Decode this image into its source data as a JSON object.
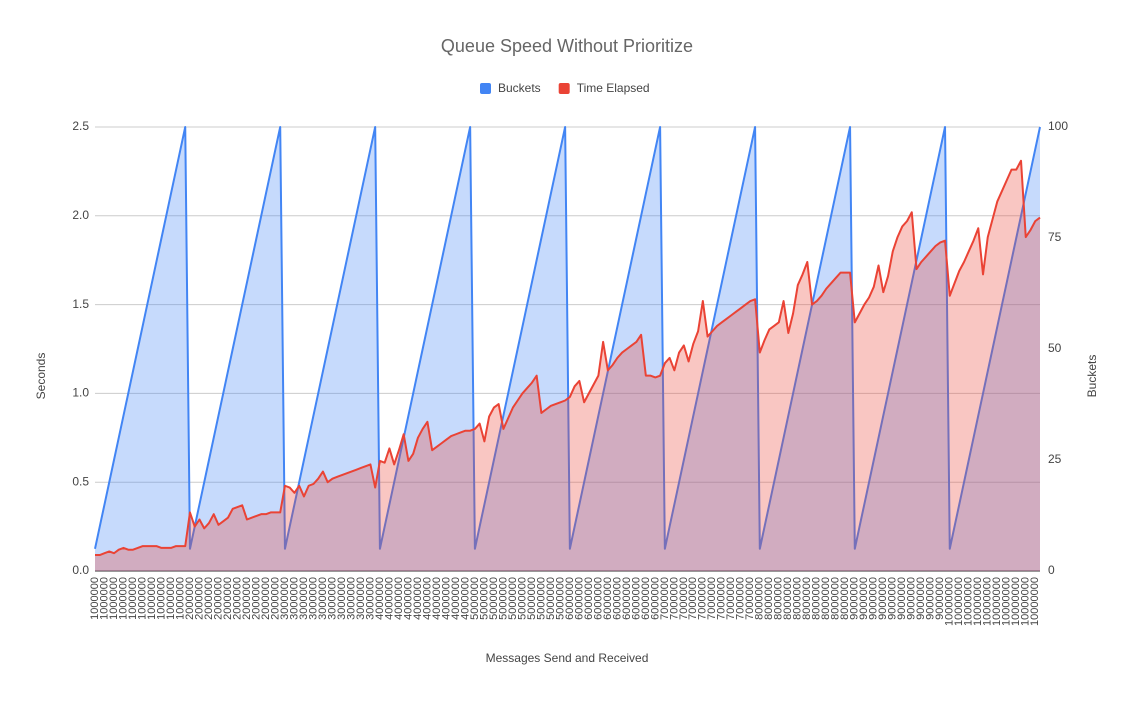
{
  "chart_data": {
    "type": "line",
    "title": "Queue Speed Without Prioritize",
    "x_label": "Messages Send and Received",
    "y_label": "Seconds",
    "y2_label": "Buckets",
    "categories": [
      "1000000",
      null,
      "1000000",
      null,
      "1000000",
      null,
      "1000000",
      null,
      "1000000",
      null,
      "1000000",
      null,
      "1000000",
      null,
      "1000000",
      null,
      "1000000",
      null,
      "1000000",
      null,
      "2000000",
      null,
      "2000000",
      null,
      "2000000",
      null,
      "2000000",
      null,
      "2000000",
      null,
      "2000000",
      null,
      "2000000",
      null,
      "2000000",
      null,
      "2000000",
      null,
      "2000000",
      null,
      "3000000",
      null,
      "3000000",
      null,
      "3000000",
      null,
      "3000000",
      null,
      "3000000",
      null,
      "3000000",
      null,
      "3000000",
      null,
      "3000000",
      null,
      "3000000",
      null,
      "3000000",
      null,
      "4000000",
      null,
      "4000000",
      null,
      "4000000",
      null,
      "4000000",
      null,
      "4000000",
      null,
      "4000000",
      null,
      "4000000",
      null,
      "4000000",
      null,
      "4000000",
      null,
      "4000000",
      null,
      "5000000",
      null,
      "5000000",
      null,
      "5000000",
      null,
      "5000000",
      null,
      "5000000",
      null,
      "5000000",
      null,
      "5000000",
      null,
      "5000000",
      null,
      "5000000",
      null,
      "5000000",
      null,
      "6000000",
      null,
      "6000000",
      null,
      "6000000",
      null,
      "6000000",
      null,
      "6000000",
      null,
      "6000000",
      null,
      "6000000",
      null,
      "6000000",
      null,
      "6000000",
      null,
      "6000000",
      null,
      "7000000",
      null,
      "7000000",
      null,
      "7000000",
      null,
      "7000000",
      null,
      "7000000",
      null,
      "7000000",
      null,
      "7000000",
      null,
      "7000000",
      null,
      "7000000",
      null,
      "7000000",
      null,
      "8000000",
      null,
      "8000000",
      null,
      "8000000",
      null,
      "8000000",
      null,
      "8000000",
      null,
      "8000000",
      null,
      "8000000",
      null,
      "8000000",
      null,
      "8000000",
      null,
      "8000000",
      null,
      "9000000",
      null,
      "9000000",
      null,
      "9000000",
      null,
      "9000000",
      null,
      "9000000",
      null,
      "9000000",
      null,
      "9000000",
      null,
      "9000000",
      null,
      "9000000",
      null,
      "9000000",
      null,
      "10000000",
      null,
      "10000000",
      null,
      "10000000",
      null,
      "10000000",
      null,
      "10000000",
      null,
      "10000000",
      null,
      "10000000",
      null,
      "10000000",
      null,
      "10000000",
      null,
      "10000000",
      null
    ],
    "series": [
      {
        "name": "Buckets",
        "color": "#4285f4",
        "axis": "y2",
        "values": [
          5,
          10,
          15,
          20,
          25,
          30,
          35,
          40,
          45,
          50,
          55,
          60,
          65,
          70,
          75,
          80,
          85,
          90,
          95,
          100,
          5,
          10,
          15,
          20,
          25,
          30,
          35,
          40,
          45,
          50,
          55,
          60,
          65,
          70,
          75,
          80,
          85,
          90,
          95,
          100,
          5,
          10,
          15,
          20,
          25,
          30,
          35,
          40,
          45,
          50,
          55,
          60,
          65,
          70,
          75,
          80,
          85,
          90,
          95,
          100,
          5,
          10,
          15,
          20,
          25,
          30,
          35,
          40,
          45,
          50,
          55,
          60,
          65,
          70,
          75,
          80,
          85,
          90,
          95,
          100,
          5,
          10,
          15,
          20,
          25,
          30,
          35,
          40,
          45,
          50,
          55,
          60,
          65,
          70,
          75,
          80,
          85,
          90,
          95,
          100,
          5,
          10,
          15,
          20,
          25,
          30,
          35,
          40,
          45,
          50,
          55,
          60,
          65,
          70,
          75,
          80,
          85,
          90,
          95,
          100,
          5,
          10,
          15,
          20,
          25,
          30,
          35,
          40,
          45,
          50,
          55,
          60,
          65,
          70,
          75,
          80,
          85,
          90,
          95,
          100,
          5,
          10,
          15,
          20,
          25,
          30,
          35,
          40,
          45,
          50,
          55,
          60,
          65,
          70,
          75,
          80,
          85,
          90,
          95,
          100,
          5,
          10,
          15,
          20,
          25,
          30,
          35,
          40,
          45,
          50,
          55,
          60,
          65,
          70,
          75,
          80,
          85,
          90,
          95,
          100,
          5,
          10,
          15,
          20,
          25,
          30,
          35,
          40,
          45,
          50,
          55,
          60,
          65,
          70,
          75,
          80,
          85,
          90,
          95,
          100
        ]
      },
      {
        "name": "Time Elapsed",
        "color": "#ea4335",
        "values": [
          0.09,
          0.09,
          0.1,
          0.11,
          0.1,
          0.12,
          0.13,
          0.12,
          0.12,
          0.13,
          0.14,
          0.14,
          0.14,
          0.14,
          0.13,
          0.13,
          0.13,
          0.14,
          0.14,
          0.14,
          0.33,
          0.25,
          0.29,
          0.24,
          0.27,
          0.32,
          0.26,
          0.28,
          0.3,
          0.35,
          0.36,
          0.37,
          0.29,
          0.3,
          0.31,
          0.32,
          0.32,
          0.33,
          0.33,
          0.33,
          0.48,
          0.47,
          0.44,
          0.48,
          0.42,
          0.48,
          0.49,
          0.52,
          0.56,
          0.5,
          0.52,
          0.53,
          0.54,
          0.55,
          0.56,
          0.57,
          0.58,
          0.59,
          0.6,
          0.47,
          0.62,
          0.61,
          0.69,
          0.6,
          0.68,
          0.77,
          0.62,
          0.66,
          0.75,
          0.8,
          0.84,
          0.68,
          0.7,
          0.72,
          0.74,
          0.76,
          0.77,
          0.78,
          0.79,
          0.79,
          0.8,
          0.83,
          0.73,
          0.87,
          0.92,
          0.94,
          0.8,
          0.86,
          0.92,
          0.96,
          1.0,
          1.03,
          1.06,
          1.1,
          0.89,
          0.91,
          0.93,
          0.94,
          0.95,
          0.96,
          0.98,
          1.04,
          1.07,
          0.95,
          1.0,
          1.05,
          1.1,
          1.29,
          1.13,
          1.16,
          1.2,
          1.23,
          1.25,
          1.27,
          1.29,
          1.33,
          1.1,
          1.1,
          1.09,
          1.1,
          1.17,
          1.2,
          1.13,
          1.23,
          1.27,
          1.18,
          1.28,
          1.35,
          1.52,
          1.32,
          1.35,
          1.38,
          1.4,
          1.42,
          1.44,
          1.46,
          1.48,
          1.5,
          1.52,
          1.53,
          1.23,
          1.3,
          1.36,
          1.38,
          1.4,
          1.52,
          1.34,
          1.45,
          1.61,
          1.67,
          1.74,
          1.5,
          1.52,
          1.55,
          1.59,
          1.62,
          1.65,
          1.68,
          1.68,
          1.68,
          1.4,
          1.45,
          1.5,
          1.54,
          1.6,
          1.72,
          1.57,
          1.66,
          1.8,
          1.88,
          1.94,
          1.97,
          2.02,
          1.7,
          1.74,
          1.77,
          1.8,
          1.83,
          1.85,
          1.86,
          1.55,
          1.62,
          1.69,
          1.74,
          1.8,
          1.86,
          1.93,
          1.67,
          1.88,
          1.98,
          2.08,
          2.14,
          2.2,
          2.26,
          2.26,
          2.31,
          1.88,
          1.92,
          1.97,
          1.99
        ]
      }
    ],
    "ylim": [
      0,
      2.5
    ],
    "yticks": [
      {
        "value": 0,
        "label": "0.0"
      },
      0.5,
      {
        "value": 1,
        "label": "1.0"
      },
      1.5,
      {
        "value": 2,
        "label": "2.0"
      },
      2.5
    ],
    "y2lim": [
      0,
      100
    ],
    "y2ticks": [
      0,
      25,
      50,
      75,
      100
    ],
    "grid": true,
    "legend": "top"
  }
}
